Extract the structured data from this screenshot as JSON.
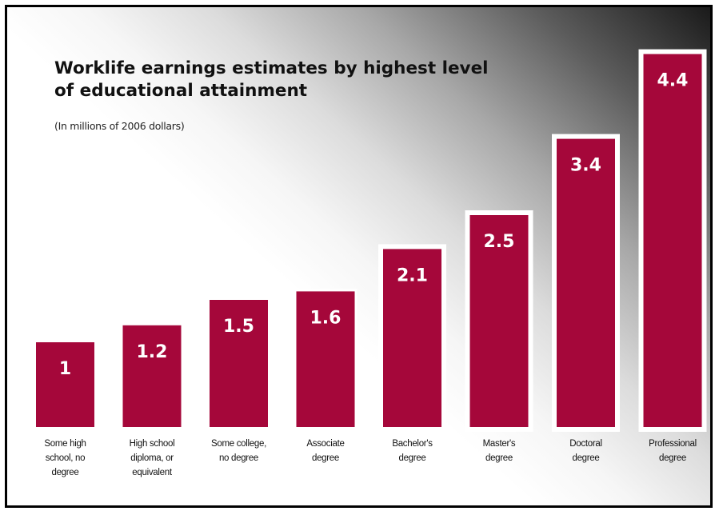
{
  "chart_data": {
    "type": "bar",
    "title": "Worklife earnings estimates by highest level of educational attainment",
    "subtitle": "(In millions of 2006 dollars)",
    "categories": [
      [
        "Some high",
        "school, no",
        "degree"
      ],
      [
        "High school",
        "diploma, or",
        "equivalent"
      ],
      [
        "Some college,",
        "no degree"
      ],
      [
        "Associate",
        "degree"
      ],
      [
        "Bachelor's",
        "degree"
      ],
      [
        "Master's",
        "degree"
      ],
      [
        "Doctoral",
        "degree"
      ],
      [
        "Professional",
        "degree"
      ]
    ],
    "values": [
      1,
      1.2,
      1.5,
      1.6,
      2.1,
      2.5,
      3.4,
      4.4
    ],
    "value_labels": [
      "1",
      "1.2",
      "1.5",
      "1.6",
      "2.1",
      "2.5",
      "3.4",
      "4.4"
    ],
    "bar_color": "#a5073a",
    "grid": false,
    "legend": "none"
  }
}
